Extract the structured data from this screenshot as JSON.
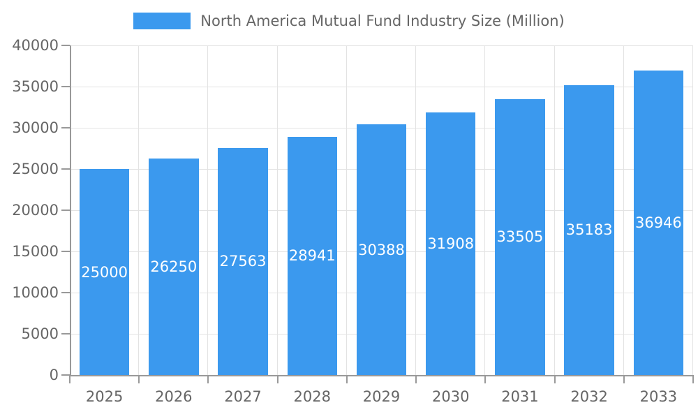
{
  "legend": {
    "label": "North America Mutual Fund Industry Size (Million)"
  },
  "chart_data": {
    "type": "bar",
    "title": "North America Mutual Fund Industry Size (Million)",
    "categories": [
      "2025",
      "2026",
      "2027",
      "2028",
      "2029",
      "2030",
      "2031",
      "2032",
      "2033"
    ],
    "values": [
      25000,
      26250,
      27563,
      28941,
      30388,
      31908,
      33505,
      35183,
      36946
    ],
    "xlabel": "",
    "ylabel": "",
    "ylim": [
      0,
      40000
    ],
    "y_tick_step": 5000,
    "grid": true,
    "legend_position": "top",
    "bar_labels_inside": true
  },
  "colors": {
    "background": "#FFFFFF",
    "bar": "#3B99EE",
    "grid": "#E3E3E3",
    "axis": "#999999",
    "text": "#666666",
    "bar_label": "#FFFFFF"
  }
}
